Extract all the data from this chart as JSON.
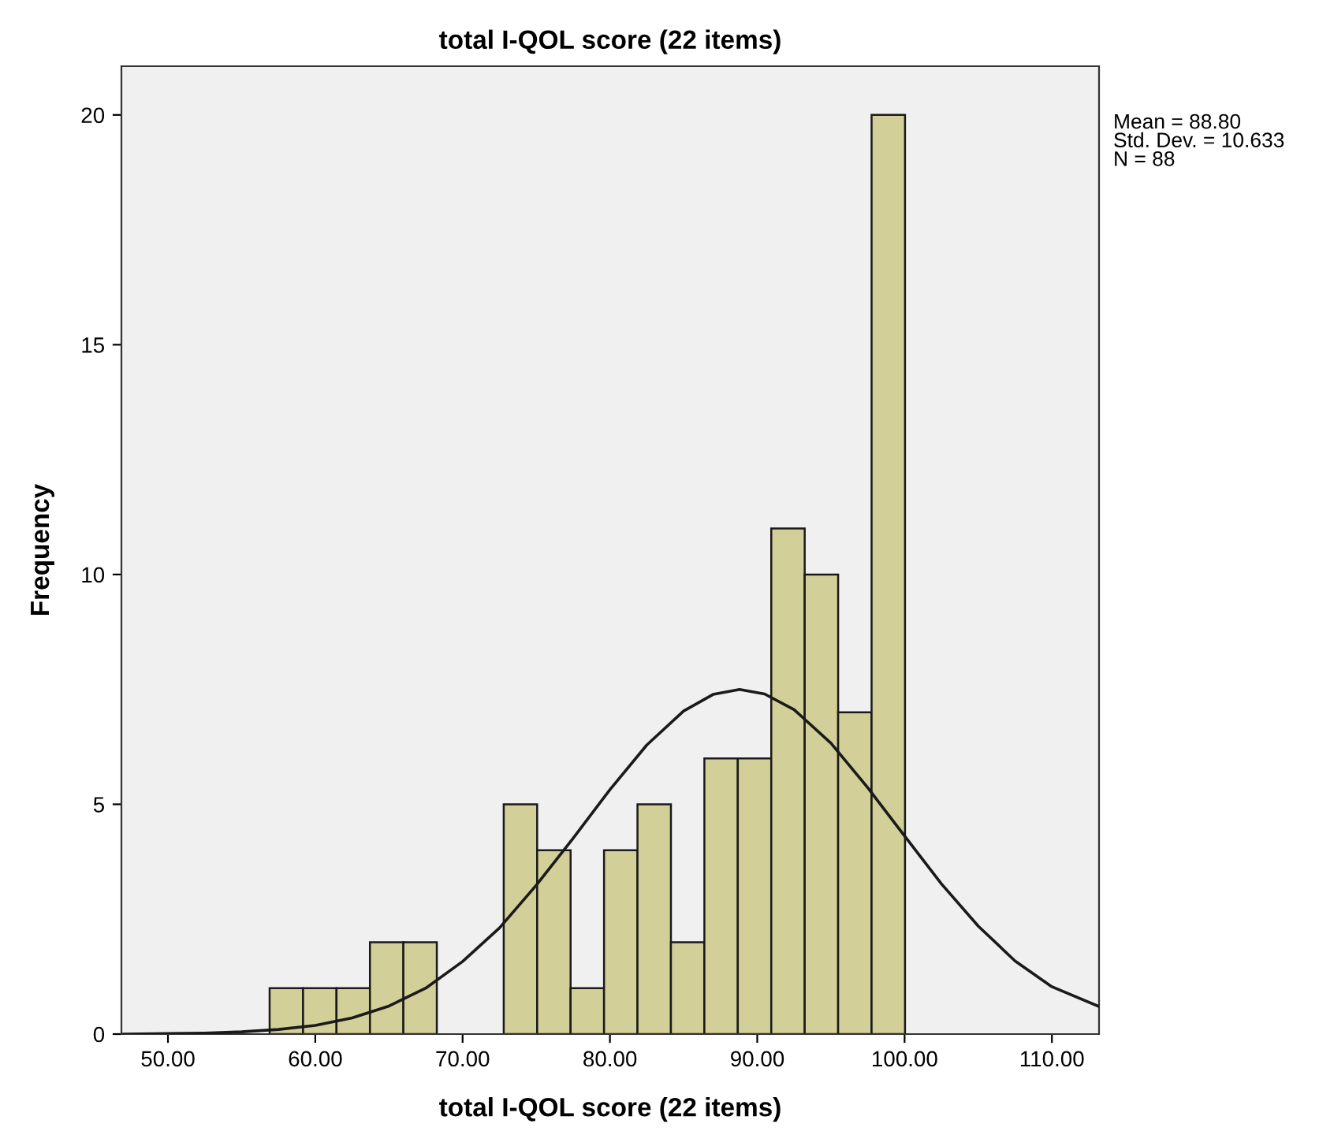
{
  "chart_data": {
    "type": "histogram",
    "title": "total I-QOL score (22 items)",
    "xlabel": "total I-QOL score (22 items)",
    "ylabel": "Frequency",
    "bins": [
      56.9,
      59.17,
      61.44,
      63.71,
      65.98,
      68.25,
      70.52,
      72.79,
      75.06,
      77.33,
      79.6,
      81.87,
      84.14,
      86.41,
      88.68,
      90.95,
      93.22,
      95.49,
      97.76,
      100.03
    ],
    "values": [
      1,
      1,
      1,
      2,
      2,
      0,
      0,
      5,
      4,
      1,
      4,
      5,
      2,
      6,
      6,
      11,
      10,
      7,
      20
    ],
    "color": "#d3cf98",
    "series": [
      {
        "type": "line",
        "color": "#1a1a1a",
        "x": [
          47,
          50,
          52.5,
          55,
          57.5,
          60,
          62.5,
          65,
          67.5,
          70,
          72.5,
          75,
          77.5,
          80,
          82.5,
          85,
          87,
          88.8,
          90.5,
          92.5,
          95,
          97.5,
          100,
          102.5,
          105,
          107.5,
          110,
          113.2
        ],
        "values": [
          0,
          0.01,
          0.02,
          0.05,
          0.1,
          0.19,
          0.35,
          0.61,
          1.0,
          1.58,
          2.31,
          3.24,
          4.26,
          5.32,
          6.29,
          7.03,
          7.39,
          7.5,
          7.4,
          7.06,
          6.33,
          5.36,
          4.31,
          3.27,
          2.35,
          1.59,
          1.03,
          0.6
        ]
      }
    ],
    "xlim": [
      46.84,
      113.2
    ],
    "ylim": [
      0,
      21.06
    ],
    "xticks": [
      {
        "value": 50,
        "label": "50.00"
      },
      {
        "value": 60,
        "label": "60.00"
      },
      {
        "value": 70,
        "label": "70.00"
      },
      {
        "value": 80,
        "label": "80.00"
      },
      {
        "value": 90,
        "label": "90.00"
      },
      {
        "value": 100,
        "label": "100.00"
      },
      {
        "value": 110,
        "label": "110.00"
      }
    ],
    "yticks": [
      0,
      5,
      10,
      15,
      20
    ],
    "annotations": [
      "Mean = 88.80\nStd. Dev. = 10.633\nN = 88"
    ],
    "grid": false
  }
}
